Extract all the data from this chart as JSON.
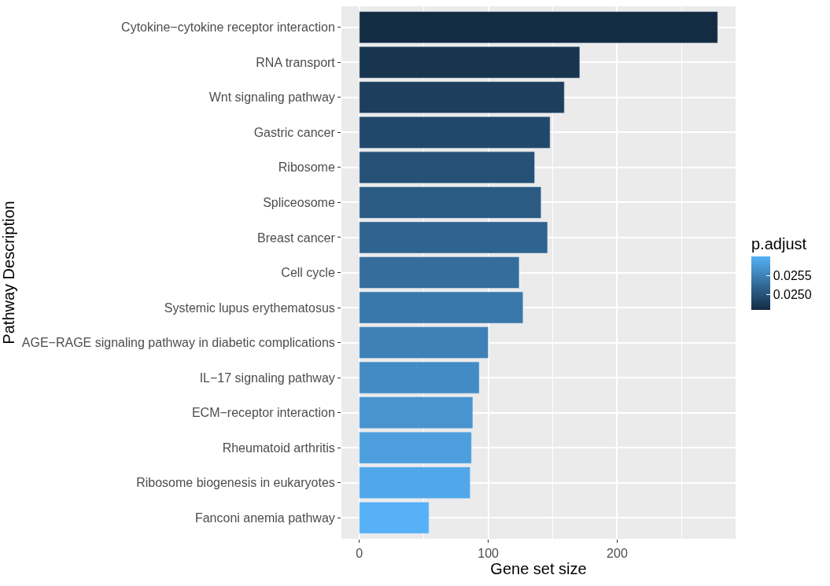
{
  "chart_data": {
    "type": "bar",
    "orientation": "horizontal",
    "xlabel": "Gene set size",
    "ylabel": "Pathway Description",
    "clabel": "p.adjust",
    "categories": [
      "Cytokine−cytokine receptor interaction",
      "RNA transport",
      "Wnt signaling pathway",
      "Gastric cancer",
      "Ribosome",
      "Spliceosome",
      "Breast cancer",
      "Cell cycle",
      "Systemic lupus erythematosus",
      "AGE−RAGE signaling pathway in diabetic complications",
      "IL−17 signaling pathway",
      "ECM−receptor interaction",
      "Rheumatoid arthritis",
      "Ribosome biogenesis in eukaryotes",
      "Fanconi anemia pathway"
    ],
    "values": [
      278,
      171,
      159,
      148,
      136,
      141,
      146,
      124,
      127,
      100,
      93,
      88,
      87,
      86,
      54
    ],
    "cvalues": [
      0.0246,
      0.0247,
      0.0248,
      0.0249,
      0.025,
      0.0251,
      0.0252,
      0.0253,
      0.0254,
      0.0255,
      0.0256,
      0.0257,
      0.0258,
      0.0259,
      0.026
    ],
    "clim": [
      0.0246,
      0.026
    ],
    "cticks": [
      {
        "value": 0.025,
        "label": "0.0250"
      },
      {
        "value": 0.0255,
        "label": "0.0255"
      }
    ],
    "colors": [
      "#132b43",
      "#183550",
      "#1d3e5d",
      "#21486a",
      "#265176",
      "#2b5b83",
      "#306490",
      "#356e9d",
      "#3978aa",
      "#3e81b7",
      "#438bc4",
      "#4894d0",
      "#4c9edd",
      "#51a7ea",
      "#56b1f7"
    ],
    "xlim": [
      -13.9,
      291.9
    ],
    "xticks": [
      0,
      100,
      200
    ],
    "grid": true
  }
}
